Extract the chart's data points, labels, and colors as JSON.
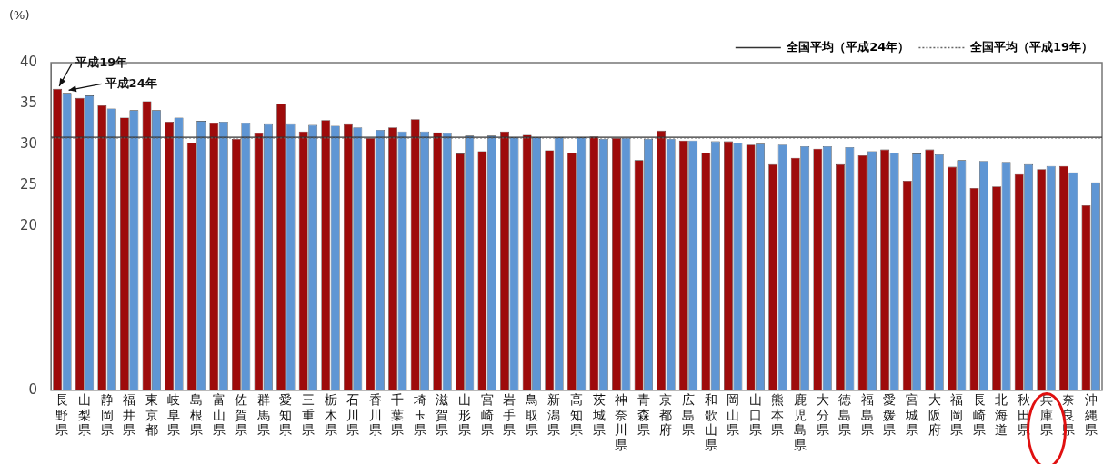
{
  "chart_data": {
    "type": "bar",
    "ylabel": "(%)",
    "categories": [
      "長野県",
      "山梨県",
      "静岡県",
      "福井県",
      "東京都",
      "岐阜県",
      "島根県",
      "富山県",
      "佐賀県",
      "群馬県",
      "愛知県",
      "三重県",
      "栃木県",
      "石川県",
      "香川県",
      "千葉県",
      "埼玉県",
      "滋賀県",
      "山形県",
      "宮崎県",
      "岩手県",
      "鳥取県",
      "新潟県",
      "高知県",
      "茨城県",
      "神奈川県",
      "青森県",
      "京都府",
      "広島県",
      "和歌山県",
      "岡山県",
      "山口県",
      "熊本県",
      "鹿児島県",
      "大分県",
      "徳島県",
      "福島県",
      "愛媛県",
      "宮城県",
      "大阪府",
      "福岡県",
      "長崎県",
      "北海道",
      "秋田県",
      "兵庫県",
      "奈良県",
      "沖縄県"
    ],
    "series": [
      {
        "name": "平成19年",
        "color": "#9e0b0b",
        "values": [
          36.8,
          35.7,
          34.8,
          33.3,
          35.3,
          32.8,
          30.2,
          32.6,
          30.7,
          31.4,
          35.0,
          31.6,
          33.0,
          32.5,
          30.8,
          32.1,
          33.1,
          31.5,
          28.9,
          29.2,
          31.6,
          31.2,
          29.3,
          29.0,
          31.0,
          30.8,
          28.1,
          31.7,
          30.5,
          29.0,
          30.4,
          30.0,
          27.6,
          28.4,
          29.5,
          27.6,
          28.7,
          29.4,
          25.6,
          29.4,
          27.3,
          24.7,
          24.9,
          26.4,
          27.0,
          27.4,
          22.6
        ]
      },
      {
        "name": "平成24年",
        "color": "#5f96d4",
        "values": [
          36.3,
          36.0,
          34.4,
          34.2,
          34.2,
          33.3,
          32.9,
          32.8,
          32.6,
          32.5,
          32.5,
          32.4,
          32.3,
          32.1,
          31.8,
          31.6,
          31.6,
          31.4,
          31.1,
          31.1,
          30.9,
          30.9,
          30.9,
          30.9,
          30.7,
          30.8,
          30.7,
          30.7,
          30.5,
          30.4,
          30.2,
          30.1,
          30.0,
          29.8,
          29.8,
          29.7,
          29.2,
          29.0,
          28.9,
          28.8,
          28.1,
          28.0,
          27.9,
          27.6,
          27.4,
          26.6,
          25.4
        ]
      }
    ],
    "ylim": [
      0,
      40
    ],
    "yticks": [
      0,
      20,
      25,
      30,
      35,
      40
    ],
    "ref_lines": [
      {
        "axis": "y",
        "value": 30.9,
        "label": "全国平均（平成24年）",
        "color": "#333333",
        "line_style": "solid"
      },
      {
        "axis": "y",
        "value": 30.8,
        "label": "全国平均（平成19年）",
        "color": "#666666",
        "line_style": "dotted"
      }
    ],
    "legend": "top right"
  }
}
